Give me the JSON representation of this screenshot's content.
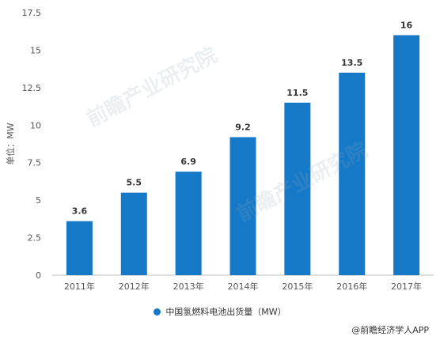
{
  "chart_data": {
    "type": "bar",
    "categories": [
      "2011年",
      "2012年",
      "2013年",
      "2014年",
      "2015年",
      "2016年",
      "2017年"
    ],
    "values": [
      3.6,
      5.5,
      6.9,
      9.2,
      11.5,
      13.5,
      16
    ],
    "value_labels": [
      "3.6",
      "5.5",
      "6.9",
      "9.2",
      "11.5",
      "13.5",
      "16"
    ],
    "yticks": [
      0,
      2.5,
      5,
      7.5,
      10,
      12.5,
      15,
      17.5
    ],
    "ytick_labels": [
      "0",
      "2.5",
      "5",
      "7.5",
      "10",
      "12.5",
      "15",
      "17.5"
    ],
    "ylim": [
      0,
      17.5
    ],
    "ylabel": "单位：MW",
    "xlabel": "",
    "title": "",
    "grid": false,
    "legend_position": "bottom",
    "series": [
      {
        "name": "中国氢燃料电池出货量（MW）",
        "color": "#1679c8"
      }
    ]
  },
  "watermark": "前瞻产业研究院",
  "footer": {
    "source": "@前瞻经济学人APP"
  }
}
